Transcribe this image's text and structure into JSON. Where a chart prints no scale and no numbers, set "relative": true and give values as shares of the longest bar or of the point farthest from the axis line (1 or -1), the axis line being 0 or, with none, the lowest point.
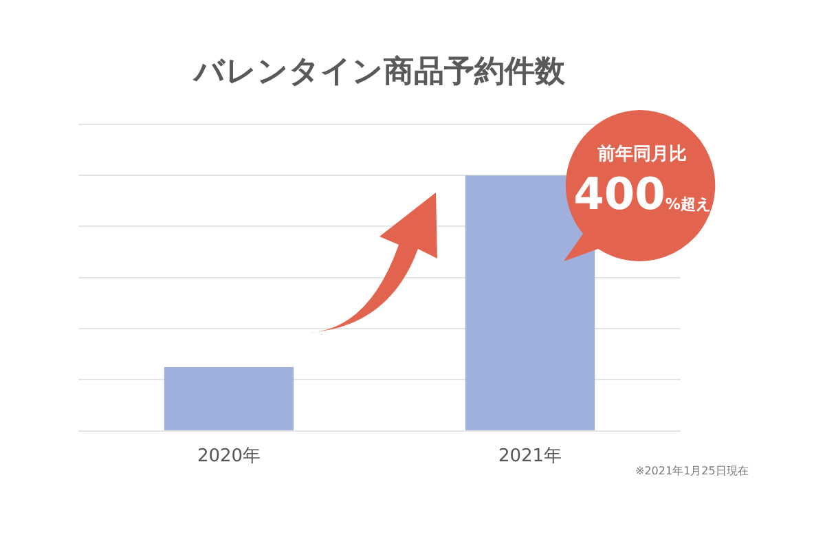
{
  "chart_data": {
    "type": "bar",
    "title": "バレンタイン商品予約件数",
    "relative": true,
    "categories": [
      "2020年",
      "2021年"
    ],
    "values": [
      0.25,
      1
    ],
    "color": "#9eb0db",
    "grid": "y",
    "legend": false,
    "annotations": [
      "前年同月比",
      "400%超え",
      "※2021年1月25日現在"
    ]
  }
}
